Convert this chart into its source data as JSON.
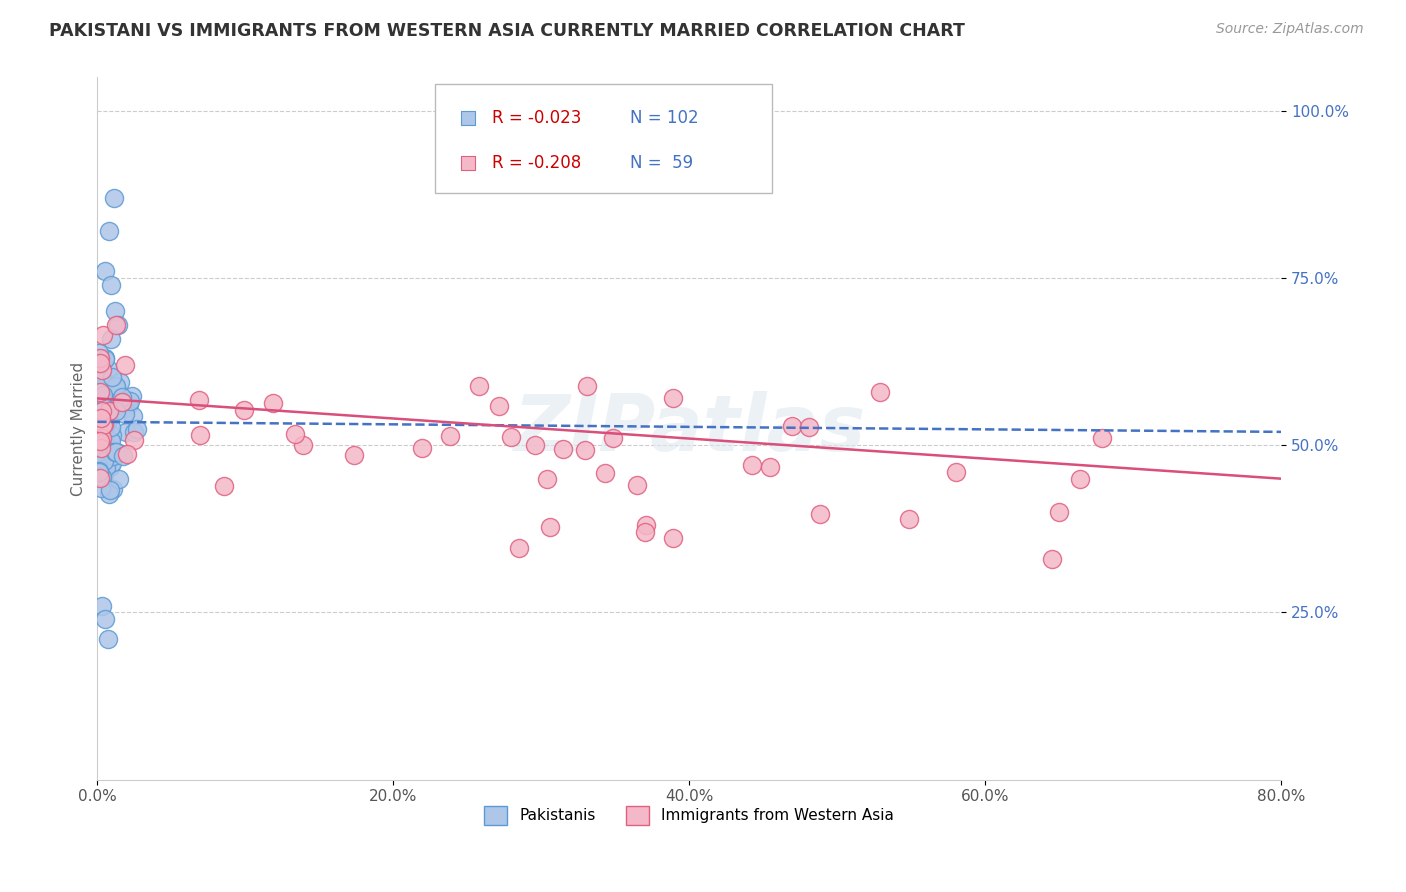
{
  "title": "PAKISTANI VS IMMIGRANTS FROM WESTERN ASIA CURRENTLY MARRIED CORRELATION CHART",
  "source": "Source: ZipAtlas.com",
  "ylabel": "Currently Married",
  "x_min": 0.0,
  "x_max": 0.8,
  "y_min": 0.0,
  "y_max": 1.05,
  "y_ticks": [
    0.25,
    0.5,
    0.75,
    1.0
  ],
  "y_tick_labels": [
    "25.0%",
    "50.0%",
    "75.0%",
    "100.0%"
  ],
  "x_ticks": [
    0.0,
    0.2,
    0.4,
    0.6,
    0.8
  ],
  "x_tick_labels": [
    "0.0%",
    "20.0%",
    "40.0%",
    "60.0%",
    "80.0%"
  ],
  "series1_label": "Pakistanis",
  "series1_color": "#aec6e8",
  "series1_edge_color": "#5b9bd5",
  "series1_R": -0.023,
  "series1_N": 102,
  "series2_label": "Immigrants from Western Asia",
  "series2_color": "#f4b8c8",
  "series2_edge_color": "#e06080",
  "series2_R": -0.208,
  "series2_N": 59,
  "trend1_color": "#4472c4",
  "trend2_color": "#d94f7a",
  "watermark": "ZIPatlas",
  "background_color": "#ffffff",
  "legend_R1": "R = -0.023",
  "legend_N1": "N = 102",
  "legend_R2": "R = -0.208",
  "legend_N2": "N =  59"
}
